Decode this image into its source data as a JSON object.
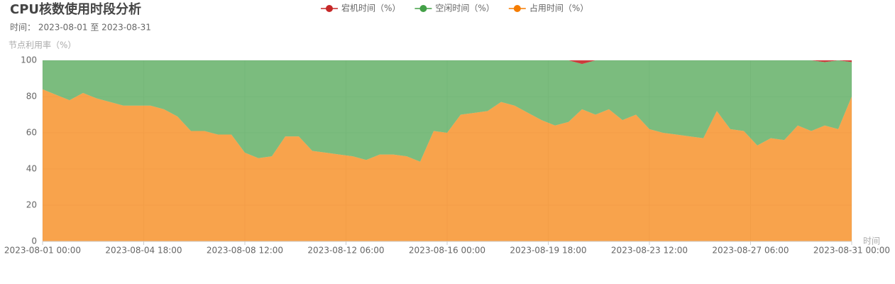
{
  "chart_data": {
    "type": "stacked-area",
    "title": "CPU核数使用时段分析",
    "subtitle": "时间： 2023-08-01 至 2023-08-31",
    "y_axis_label": "节点利用率（%）",
    "x_axis_label": "时间",
    "x": [
      "2023-08-01 00:00",
      "2023-08-01 12:00",
      "2023-08-02 00:00",
      "2023-08-02 12:00",
      "2023-08-03 00:00",
      "2023-08-03 12:00",
      "2023-08-04 00:00",
      "2023-08-04 12:00",
      "2023-08-05 00:00",
      "2023-08-05 12:00",
      "2023-08-06 00:00",
      "2023-08-06 12:00",
      "2023-08-07 00:00",
      "2023-08-07 12:00",
      "2023-08-08 00:00",
      "2023-08-08 12:00",
      "2023-08-09 00:00",
      "2023-08-09 12:00",
      "2023-08-10 00:00",
      "2023-08-10 12:00",
      "2023-08-11 00:00",
      "2023-08-11 12:00",
      "2023-08-12 00:00",
      "2023-08-12 12:00",
      "2023-08-13 00:00",
      "2023-08-13 12:00",
      "2023-08-14 00:00",
      "2023-08-14 12:00",
      "2023-08-15 00:00",
      "2023-08-15 12:00",
      "2023-08-16 00:00",
      "2023-08-16 12:00",
      "2023-08-17 00:00",
      "2023-08-17 12:00",
      "2023-08-18 00:00",
      "2023-08-18 12:00",
      "2023-08-19 00:00",
      "2023-08-19 12:00",
      "2023-08-20 00:00",
      "2023-08-20 12:00",
      "2023-08-21 00:00",
      "2023-08-21 12:00",
      "2023-08-22 00:00",
      "2023-08-22 12:00",
      "2023-08-23 00:00",
      "2023-08-23 12:00",
      "2023-08-24 00:00",
      "2023-08-24 12:00",
      "2023-08-25 00:00",
      "2023-08-25 12:00",
      "2023-08-26 00:00",
      "2023-08-26 12:00",
      "2023-08-27 00:00",
      "2023-08-27 12:00",
      "2023-08-28 00:00",
      "2023-08-28 12:00",
      "2023-08-29 00:00",
      "2023-08-29 12:00",
      "2023-08-30 00:00",
      "2023-08-30 12:00",
      "2023-08-31 00:00"
    ],
    "series": [
      {
        "name": "占用时间（%）",
        "color": "#f57c00",
        "values": [
          84,
          81,
          78,
          82,
          79,
          77,
          75,
          75,
          75,
          73,
          69,
          61,
          61,
          59,
          59,
          49,
          46,
          47,
          58,
          58,
          50,
          49,
          48,
          47,
          45,
          48,
          48,
          47,
          44,
          61,
          60,
          70,
          71,
          72,
          77,
          75,
          71,
          67,
          64,
          66,
          73,
          70,
          73,
          67,
          70,
          62,
          60,
          59,
          58,
          57,
          72,
          62,
          61,
          53,
          57,
          56,
          64,
          61,
          64,
          62,
          80
        ]
      },
      {
        "name": "空闲时间（%）",
        "color": "#43a047",
        "values": [
          16,
          19,
          22,
          18,
          21,
          23,
          25,
          25,
          25,
          27,
          31,
          39,
          39,
          41,
          41,
          51,
          54,
          53,
          42,
          42,
          50,
          51,
          52,
          53,
          55,
          52,
          52,
          53,
          56,
          39,
          40,
          30,
          29,
          28,
          23,
          25,
          29,
          33,
          36,
          34,
          25,
          30,
          27,
          33,
          30,
          38,
          40,
          41,
          42,
          43,
          28,
          38,
          39,
          47,
          43,
          44,
          36,
          39,
          35,
          38,
          19
        ]
      },
      {
        "name": "宕机时间（%）",
        "color": "#c62828",
        "values": [
          0,
          0,
          0,
          0,
          0,
          0,
          0,
          0,
          0,
          0,
          0,
          0,
          0,
          0,
          0,
          0,
          0,
          0,
          0,
          0,
          0,
          0,
          0,
          0,
          0,
          0,
          0,
          0,
          0,
          0,
          0,
          0,
          0,
          0,
          0,
          0,
          0,
          0,
          0,
          0,
          2,
          0,
          0,
          0,
          0,
          0,
          0,
          0,
          0,
          0,
          0,
          0,
          0,
          0,
          0,
          0,
          0,
          0,
          1,
          0,
          1
        ]
      }
    ],
    "legend_order": [
      2,
      1,
      0
    ],
    "xlim": [
      "2023-08-01 00:00",
      "2023-08-31 00:00"
    ],
    "xticks": [
      "2023-08-01 00:00",
      "2023-08-04 18:00",
      "2023-08-08 12:00",
      "2023-08-12 06:00",
      "2023-08-16 00:00",
      "2023-08-19 18:00",
      "2023-08-23 12:00",
      "2023-08-27 06:00",
      "2023-08-31 00:00"
    ],
    "ylim": [
      0,
      100
    ],
    "yticks": [
      0,
      20,
      40,
      60,
      80,
      100
    ],
    "grid": true
  }
}
